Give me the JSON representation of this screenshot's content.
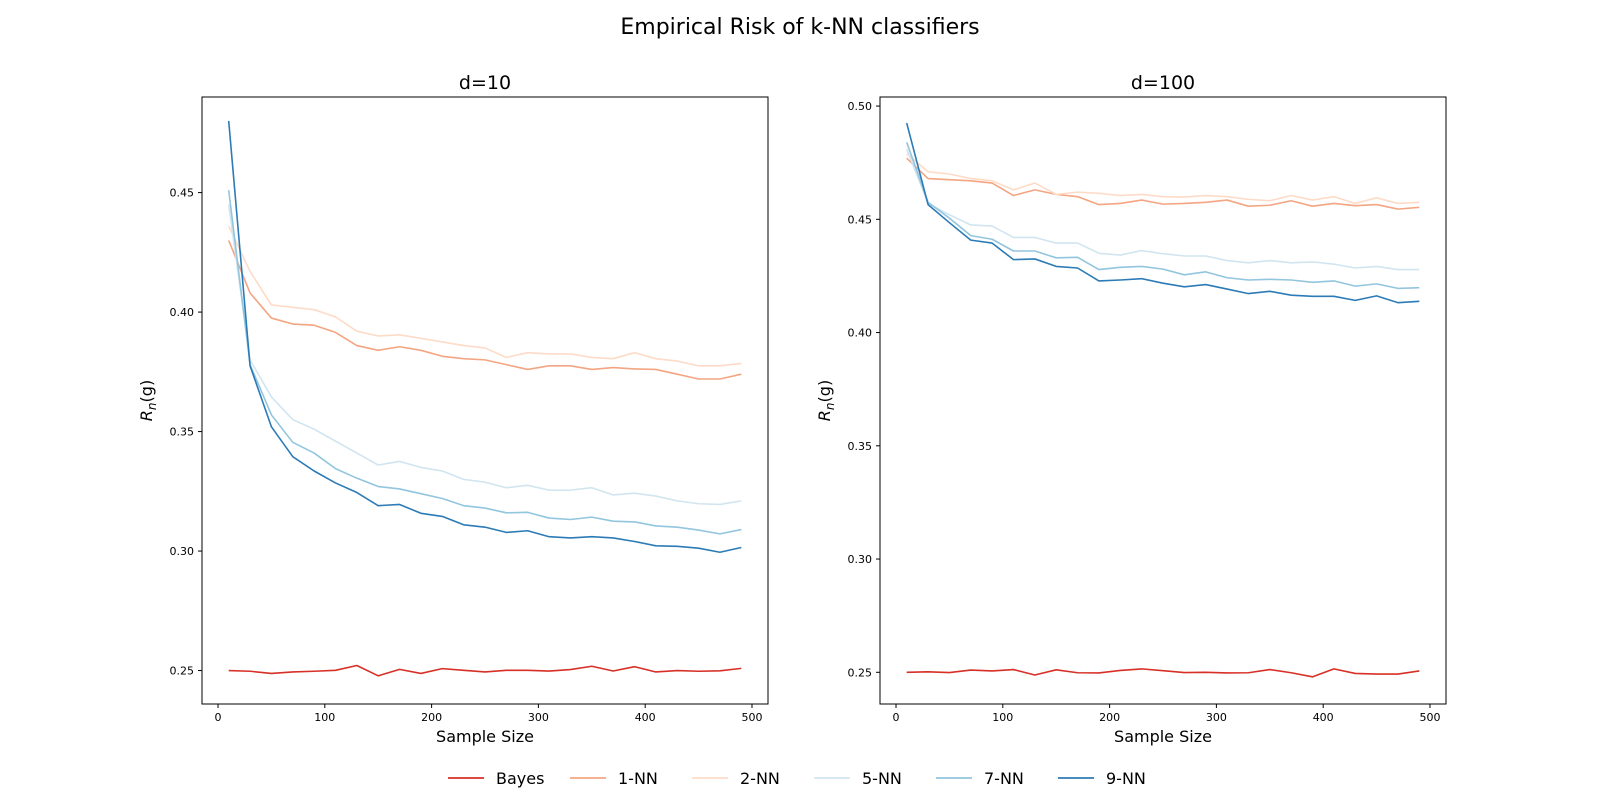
{
  "chart_data": {
    "type": "line",
    "title": "Empirical Risk of k-NN classifiers",
    "legend_position": "bottom-center",
    "series_styles": [
      {
        "name": "Bayes",
        "color": "#d73027"
      },
      {
        "name": "1-NN",
        "color": "#f4a582"
      },
      {
        "name": "2-NN",
        "color": "#fddbc7"
      },
      {
        "name": "5-NN",
        "color": "#d1e5f0"
      },
      {
        "name": "7-NN",
        "color": "#92c5de"
      },
      {
        "name": "9-NN",
        "color": "#2c7bb6"
      }
    ],
    "panels": [
      {
        "title": "d=10",
        "xlabel": "Sample Size",
        "ylabel": "R",
        "ylabel_sub": "n",
        "ylabel_suffix": "(g)",
        "xlim": [
          -15,
          515
        ],
        "ylim": [
          0.236,
          0.49
        ],
        "xticks": [
          0,
          100,
          200,
          300,
          400,
          500
        ],
        "yticks": [
          0.25,
          0.3,
          0.35,
          0.4,
          0.45
        ],
        "ytick_labels": [
          "0.25",
          "0.30",
          "0.35",
          "0.40",
          "0.45"
        ],
        "x": [
          10,
          30,
          50,
          70,
          90,
          110,
          130,
          150,
          170,
          190,
          210,
          230,
          250,
          270,
          290,
          310,
          330,
          350,
          370,
          390,
          410,
          430,
          450,
          470,
          490
        ],
        "series": [
          {
            "name": "Bayes",
            "values": [
              0.25,
              0.2497,
              0.2488,
              0.2494,
              0.2497,
              0.2501,
              0.2521,
              0.2478,
              0.2505,
              0.2488,
              0.2508,
              0.2501,
              0.2494,
              0.2501,
              0.2501,
              0.2498,
              0.2504,
              0.2518,
              0.2498,
              0.2516,
              0.2494,
              0.25,
              0.2497,
              0.2499,
              0.2509
            ]
          },
          {
            "name": "1-NN",
            "values": [
              0.43,
              0.408,
              0.3975,
              0.395,
              0.3945,
              0.3915,
              0.386,
              0.384,
              0.3855,
              0.384,
              0.3815,
              0.3805,
              0.38,
              0.378,
              0.376,
              0.3775,
              0.3775,
              0.376,
              0.3768,
              0.3762,
              0.376,
              0.374,
              0.372,
              0.372,
              0.374
            ]
          },
          {
            "name": "2-NN",
            "values": [
              0.436,
              0.417,
              0.403,
              0.402,
              0.401,
              0.398,
              0.392,
              0.39,
              0.3905,
              0.389,
              0.3875,
              0.386,
              0.385,
              0.381,
              0.383,
              0.3825,
              0.3825,
              0.381,
              0.3805,
              0.383,
              0.3805,
              0.3795,
              0.3775,
              0.3775,
              0.3785
            ]
          },
          {
            "name": "5-NN",
            "values": [
              0.445,
              0.38,
              0.3645,
              0.355,
              0.351,
              0.346,
              0.341,
              0.336,
              0.3375,
              0.335,
              0.3335,
              0.33,
              0.3288,
              0.3265,
              0.3275,
              0.3255,
              0.3255,
              0.3265,
              0.3235,
              0.3242,
              0.323,
              0.321,
              0.3198,
              0.3195,
              0.321
            ]
          },
          {
            "name": "7-NN",
            "values": [
              0.451,
              0.378,
              0.357,
              0.3455,
              0.341,
              0.3345,
              0.3305,
              0.327,
              0.326,
              0.324,
              0.322,
              0.319,
              0.318,
              0.316,
              0.3162,
              0.3138,
              0.3132,
              0.3142,
              0.3125,
              0.3122,
              0.3105,
              0.31,
              0.3088,
              0.3072,
              0.309
            ]
          },
          {
            "name": "9-NN",
            "values": [
              0.48,
              0.3775,
              0.352,
              0.3395,
              0.3335,
              0.3285,
              0.3245,
              0.319,
              0.3195,
              0.3158,
              0.3145,
              0.311,
              0.31,
              0.3078,
              0.3085,
              0.306,
              0.3055,
              0.306,
              0.3055,
              0.304,
              0.3022,
              0.302,
              0.3012,
              0.2995,
              0.3015
            ]
          }
        ]
      },
      {
        "title": "d=100",
        "xlabel": "Sample Size",
        "ylabel": "R",
        "ylabel_sub": "n",
        "ylabel_suffix": "(g)",
        "xlim": [
          -15,
          515
        ],
        "ylim": [
          0.236,
          0.504
        ],
        "xticks": [
          0,
          100,
          200,
          300,
          400,
          500
        ],
        "yticks": [
          0.25,
          0.3,
          0.35,
          0.4,
          0.45,
          0.5
        ],
        "ytick_labels": [
          "0.25",
          "0.30",
          "0.35",
          "0.40",
          "0.45",
          "0.50"
        ],
        "x": [
          10,
          30,
          50,
          70,
          90,
          110,
          130,
          150,
          170,
          190,
          210,
          230,
          250,
          270,
          290,
          310,
          330,
          350,
          370,
          390,
          410,
          430,
          450,
          470,
          490
        ],
        "series": [
          {
            "name": "Bayes",
            "values": [
              0.25,
              0.2502,
              0.2499,
              0.251,
              0.2506,
              0.2512,
              0.2488,
              0.2511,
              0.2498,
              0.2497,
              0.2508,
              0.2515,
              0.2507,
              0.2499,
              0.25,
              0.2497,
              0.2498,
              0.2512,
              0.2498,
              0.248,
              0.2515,
              0.2495,
              0.2492,
              0.2492,
              0.2506
            ]
          },
          {
            "name": "1-NN",
            "values": [
              0.477,
              0.468,
              0.4675,
              0.467,
              0.466,
              0.4605,
              0.463,
              0.461,
              0.46,
              0.4565,
              0.457,
              0.4585,
              0.4567,
              0.457,
              0.4575,
              0.4585,
              0.4558,
              0.4562,
              0.4582,
              0.4558,
              0.457,
              0.456,
              0.4565,
              0.4545,
              0.4553
            ]
          },
          {
            "name": "2-NN",
            "values": [
              0.479,
              0.471,
              0.47,
              0.468,
              0.467,
              0.463,
              0.466,
              0.461,
              0.462,
              0.4615,
              0.4605,
              0.461,
              0.46,
              0.4598,
              0.4605,
              0.46,
              0.4588,
              0.4582,
              0.4605,
              0.4585,
              0.46,
              0.457,
              0.4595,
              0.457,
              0.4575
            ]
          },
          {
            "name": "5-NN",
            "values": [
              0.481,
              0.457,
              0.452,
              0.4475,
              0.447,
              0.442,
              0.442,
              0.4395,
              0.4395,
              0.435,
              0.4342,
              0.4362,
              0.4348,
              0.4338,
              0.4338,
              0.4318,
              0.4308,
              0.4318,
              0.4308,
              0.4312,
              0.4302,
              0.4285,
              0.4292,
              0.4278,
              0.4278
            ]
          },
          {
            "name": "7-NN",
            "values": [
              0.484,
              0.4575,
              0.4505,
              0.4428,
              0.4412,
              0.436,
              0.436,
              0.433,
              0.4332,
              0.4278,
              0.4288,
              0.4292,
              0.428,
              0.4255,
              0.4268,
              0.4242,
              0.4232,
              0.4235,
              0.4232,
              0.4222,
              0.4228,
              0.4205,
              0.4215,
              0.4195,
              0.4198
            ]
          },
          {
            "name": "9-NN",
            "values": [
              0.4925,
              0.4565,
              0.4485,
              0.4408,
              0.4395,
              0.4322,
              0.4325,
              0.4292,
              0.4285,
              0.4228,
              0.4232,
              0.4238,
              0.4218,
              0.4202,
              0.4212,
              0.4192,
              0.4172,
              0.4182,
              0.4165,
              0.416,
              0.416,
              0.4142,
              0.4162,
              0.4132,
              0.4138
            ]
          }
        ]
      }
    ]
  }
}
